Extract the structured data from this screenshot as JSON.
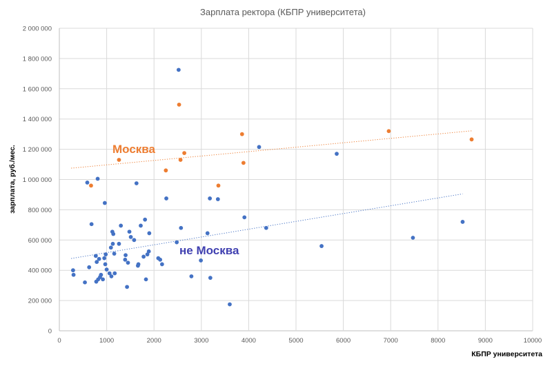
{
  "chart_data": {
    "type": "scatter",
    "title": "Зарплата ректора (КБПР университета)",
    "xlabel": "КБПР университета",
    "ylabel": "зарплата, руб./мес.",
    "xlim": [
      0,
      10000
    ],
    "ylim": [
      0,
      2000000
    ],
    "x_ticks": [
      0,
      1000,
      2000,
      3000,
      4000,
      5000,
      6000,
      7000,
      8000,
      9000,
      10000
    ],
    "x_tick_labels": [
      "0",
      "1000",
      "2000",
      "3000",
      "4000",
      "5000",
      "6000",
      "7000",
      "8000",
      "9000",
      "10000"
    ],
    "y_ticks": [
      0,
      200000,
      400000,
      600000,
      800000,
      1000000,
      1200000,
      1400000,
      1600000,
      1800000,
      2000000
    ],
    "y_tick_labels": [
      "0",
      "200 000",
      "400 000",
      "600 000",
      "800 000",
      "1 000 000",
      "1 200 000",
      "1 400 000",
      "1 600 000",
      "1 800 000",
      "2 000 000"
    ],
    "grid": true,
    "legend": "none",
    "series": [
      {
        "name": "Москва",
        "color": "#ED7D31",
        "points": [
          [
            670,
            960000
          ],
          [
            1260,
            1130000
          ],
          [
            2250,
            1060000
          ],
          [
            2530,
            1495000
          ],
          [
            2560,
            1130000
          ],
          [
            2640,
            1175000
          ],
          [
            3360,
            960000
          ],
          [
            3860,
            1300000
          ],
          [
            3890,
            1110000
          ],
          [
            6960,
            1320000
          ],
          [
            8710,
            1265000
          ]
        ],
        "trend": {
          "x": [
            250,
            8710
          ],
          "y": [
            1075000,
            1322000
          ]
        }
      },
      {
        "name": "не Москва",
        "color": "#4472C4",
        "points": [
          [
            290,
            400000
          ],
          [
            300,
            370000
          ],
          [
            540,
            320000
          ],
          [
            590,
            980000
          ],
          [
            630,
            420000
          ],
          [
            680,
            705000
          ],
          [
            770,
            495000
          ],
          [
            780,
            325000
          ],
          [
            790,
            455000
          ],
          [
            810,
            1005000
          ],
          [
            820,
            340000
          ],
          [
            840,
            475000
          ],
          [
            860,
            355000
          ],
          [
            880,
            370000
          ],
          [
            920,
            340000
          ],
          [
            950,
            480000
          ],
          [
            960,
            845000
          ],
          [
            970,
            440000
          ],
          [
            980,
            505000
          ],
          [
            1000,
            405000
          ],
          [
            1060,
            380000
          ],
          [
            1090,
            550000
          ],
          [
            1100,
            360000
          ],
          [
            1120,
            655000
          ],
          [
            1130,
            575000
          ],
          [
            1140,
            640000
          ],
          [
            1160,
            510000
          ],
          [
            1170,
            380000
          ],
          [
            1260,
            575000
          ],
          [
            1300,
            695000
          ],
          [
            1390,
            470000
          ],
          [
            1400,
            500000
          ],
          [
            1430,
            290000
          ],
          [
            1450,
            450000
          ],
          [
            1480,
            655000
          ],
          [
            1510,
            620000
          ],
          [
            1580,
            600000
          ],
          [
            1630,
            975000
          ],
          [
            1660,
            430000
          ],
          [
            1670,
            440000
          ],
          [
            1720,
            695000
          ],
          [
            1780,
            490000
          ],
          [
            1810,
            735000
          ],
          [
            1830,
            340000
          ],
          [
            1860,
            505000
          ],
          [
            1890,
            525000
          ],
          [
            1900,
            645000
          ],
          [
            2090,
            480000
          ],
          [
            2130,
            470000
          ],
          [
            2170,
            440000
          ],
          [
            2260,
            875000
          ],
          [
            2480,
            585000
          ],
          [
            2520,
            1725000
          ],
          [
            2570,
            680000
          ],
          [
            2790,
            360000
          ],
          [
            2990,
            465000
          ],
          [
            3130,
            645000
          ],
          [
            3180,
            875000
          ],
          [
            3190,
            350000
          ],
          [
            3350,
            870000
          ],
          [
            3600,
            175000
          ],
          [
            3910,
            750000
          ],
          [
            4220,
            1215000
          ],
          [
            4370,
            680000
          ],
          [
            5540,
            560000
          ],
          [
            5860,
            1170000
          ],
          [
            7470,
            615000
          ],
          [
            8520,
            720000
          ]
        ],
        "trend": {
          "x": [
            250,
            8520
          ],
          "y": [
            478000,
            905000
          ]
        }
      }
    ],
    "annotations": [
      {
        "text": "Москва",
        "series": "Москва"
      },
      {
        "text": "не Москва",
        "series": "не Москва"
      }
    ]
  }
}
